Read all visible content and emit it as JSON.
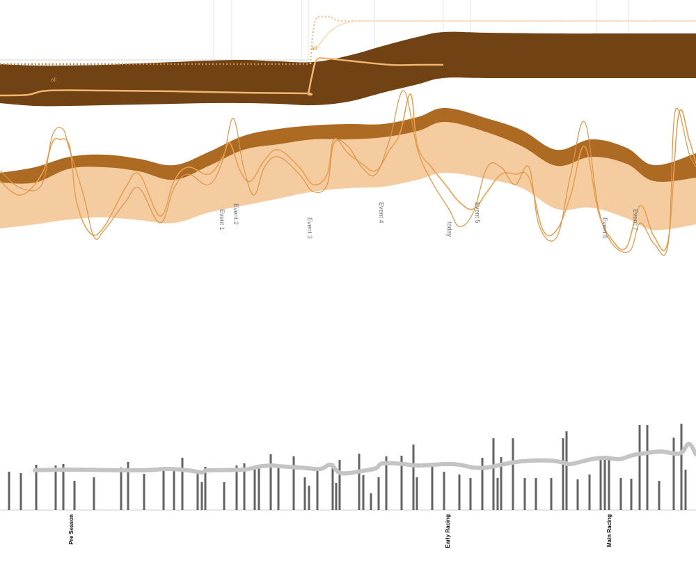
{
  "colors": {
    "performance_band": "#704214",
    "fitness_band_dark": "#ad6a22",
    "fitness_band_light": "#f5cba0",
    "form_line": "#f0b770",
    "load_line_1": "#e8a050",
    "load_line_2": "#d9954a",
    "bars": "#636363",
    "trend": "#c4c4c4",
    "gridline": "#e3e3e3"
  },
  "chart_data": [
    {
      "type": "area",
      "x": [
        0,
        50,
        100,
        150,
        200,
        250,
        300,
        350,
        400,
        450,
        500,
        550,
        600,
        637,
        700,
        800,
        900,
        1000
      ],
      "band_upper": [
        92,
        94,
        94,
        93,
        91,
        89,
        87,
        86,
        88,
        89,
        80,
        66,
        53,
        46,
        47,
        48,
        48,
        48
      ],
      "band_lower": [
        148,
        152,
        152,
        151,
        150,
        149,
        148,
        148,
        149,
        151,
        146,
        133,
        121,
        112,
        112,
        112,
        112,
        112
      ],
      "band_label": "all",
      "form_line": {
        "x": [
          0,
          40,
          70,
          150,
          250,
          350,
          440,
          443,
          448,
          455,
          470,
          500,
          560,
          600,
          637
        ],
        "y": [
          137,
          136,
          130,
          130,
          131,
          133,
          134,
          134,
          110,
          86,
          84,
          87,
          93,
          93,
          93
        ]
      },
      "form_line_label": "all"
    },
    {
      "type": "area",
      "x": [
        0,
        50,
        100,
        150,
        200,
        250,
        300,
        350,
        400,
        450,
        500,
        550,
        600,
        640,
        700,
        750,
        800,
        850,
        900,
        940,
        1000
      ],
      "dark_upper": [
        248,
        240,
        225,
        222,
        228,
        237,
        218,
        195,
        185,
        180,
        178,
        178,
        168,
        155,
        170,
        187,
        215,
        200,
        212,
        237,
        220
      ],
      "light_upper": [
        262,
        262,
        242,
        240,
        246,
        258,
        238,
        215,
        207,
        200,
        200,
        197,
        188,
        175,
        190,
        210,
        238,
        225,
        235,
        260,
        255
      ],
      "light_lower": [
        328,
        322,
        315,
        312,
        316,
        320,
        305,
        295,
        285,
        275,
        270,
        268,
        258,
        248,
        257,
        270,
        300,
        298,
        313,
        330,
        322
      ],
      "series": [
        {
          "x": [
            0,
            30,
            60,
            75,
            85,
            100,
            110,
            130,
            150,
            180,
            200,
            230,
            250,
            270,
            300,
            320,
            330,
            345,
            360,
            380,
            400,
            430,
            450,
            470,
            480,
            500,
            520,
            540,
            560,
            575,
            590,
            600,
            620,
            640,
            660,
            680,
            700,
            720,
            740,
            760,
            780,
            800,
            820,
            840,
            860,
            880,
            900,
            920,
            940,
            960,
            975,
            990,
            1000
          ],
          "y": [
            260,
            280,
            250,
            205,
            200,
            210,
            290,
            335,
            325,
            270,
            250,
            310,
            260,
            240,
            250,
            225,
            205,
            245,
            260,
            230,
            215,
            240,
            265,
            250,
            200,
            220,
            235,
            245,
            215,
            190,
            135,
            210,
            240,
            265,
            290,
            300,
            275,
            250,
            250,
            255,
            330,
            330,
            280,
            210,
            305,
            345,
            355,
            295,
            340,
            345,
            165,
            200,
            235
          ]
        },
        {
          "x": [
            0,
            30,
            60,
            75,
            90,
            100,
            120,
            135,
            150,
            180,
            200,
            230,
            250,
            270,
            300,
            320,
            335,
            350,
            365,
            380,
            400,
            430,
            450,
            470,
            480,
            500,
            520,
            540,
            560,
            580,
            600,
            620,
            645,
            660,
            680,
            700,
            720,
            740,
            760,
            775,
            800,
            820,
            840,
            860,
            880,
            905,
            920,
            940,
            960,
            970,
            990,
            1000
          ],
          "y": [
            245,
            270,
            265,
            195,
            185,
            215,
            280,
            340,
            330,
            290,
            270,
            320,
            270,
            250,
            265,
            230,
            170,
            240,
            280,
            240,
            225,
            250,
            275,
            265,
            205,
            210,
            240,
            250,
            200,
            130,
            215,
            260,
            300,
            325,
            305,
            240,
            240,
            265,
            240,
            325,
            340,
            250,
            175,
            300,
            350,
            360,
            320,
            350,
            350,
            160,
            220,
            240
          ]
        }
      ],
      "event_labels": [
        "Event 1",
        "Event 2",
        "Event 3",
        "Event 4",
        "today",
        "Event 5",
        "Event 6",
        "Event 7"
      ]
    },
    {
      "type": "bar",
      "season_labels": [
        "Pre Season",
        "Early Racing",
        "Main Racing"
      ],
      "bars": [
        {
          "x": 13,
          "v": 55
        },
        {
          "x": 30,
          "v": 53
        },
        {
          "x": 52,
          "v": 65
        },
        {
          "x": 80,
          "v": 64
        },
        {
          "x": 91,
          "v": 66
        },
        {
          "x": 107,
          "v": 42
        },
        {
          "x": 135,
          "v": 47
        },
        {
          "x": 174,
          "v": 61
        },
        {
          "x": 184,
          "v": 69
        },
        {
          "x": 207,
          "v": 52
        },
        {
          "x": 235,
          "v": 56
        },
        {
          "x": 250,
          "v": 58
        },
        {
          "x": 262,
          "v": 75
        },
        {
          "x": 284,
          "v": 53
        },
        {
          "x": 290,
          "v": 40
        },
        {
          "x": 295,
          "v": 62
        },
        {
          "x": 322,
          "v": 40
        },
        {
          "x": 340,
          "v": 64
        },
        {
          "x": 351,
          "v": 67
        },
        {
          "x": 366,
          "v": 63
        },
        {
          "x": 372,
          "v": 61
        },
        {
          "x": 389,
          "v": 80
        },
        {
          "x": 400,
          "v": 60
        },
        {
          "x": 422,
          "v": 77
        },
        {
          "x": 438,
          "v": 47
        },
        {
          "x": 444,
          "v": 35
        },
        {
          "x": 456,
          "v": 58
        },
        {
          "x": 478,
          "v": 67
        },
        {
          "x": 483,
          "v": 39
        },
        {
          "x": 488,
          "v": 72
        },
        {
          "x": 516,
          "v": 81
        },
        {
          "x": 522,
          "v": 50
        },
        {
          "x": 533,
          "v": 24
        },
        {
          "x": 544,
          "v": 47
        },
        {
          "x": 555,
          "v": 77
        },
        {
          "x": 577,
          "v": 78
        },
        {
          "x": 594,
          "v": 94
        },
        {
          "x": 599,
          "v": 47
        },
        {
          "x": 621,
          "v": 66
        },
        {
          "x": 638,
          "v": 55
        },
        {
          "x": 660,
          "v": 51
        },
        {
          "x": 676,
          "v": 46
        },
        {
          "x": 693,
          "v": 75
        },
        {
          "x": 709,
          "v": 103
        },
        {
          "x": 715,
          "v": 46
        },
        {
          "x": 720,
          "v": 76
        },
        {
          "x": 737,
          "v": 103
        },
        {
          "x": 754,
          "v": 46
        },
        {
          "x": 770,
          "v": 46
        },
        {
          "x": 792,
          "v": 46
        },
        {
          "x": 809,
          "v": 103
        },
        {
          "x": 814,
          "v": 113
        },
        {
          "x": 830,
          "v": 44
        },
        {
          "x": 847,
          "v": 51
        },
        {
          "x": 863,
          "v": 77
        },
        {
          "x": 869,
          "v": 73
        },
        {
          "x": 875,
          "v": 77
        },
        {
          "x": 892,
          "v": 46
        },
        {
          "x": 907,
          "v": 45
        },
        {
          "x": 919,
          "v": 122
        },
        {
          "x": 930,
          "v": 122
        },
        {
          "x": 947,
          "v": 42
        },
        {
          "x": 968,
          "v": 104
        },
        {
          "x": 979,
          "v": 124
        },
        {
          "x": 985,
          "v": 58
        }
      ],
      "trend_x": [
        50,
        100,
        200,
        240,
        270,
        290,
        300,
        350,
        370,
        390,
        400,
        430,
        460,
        475,
        490,
        520,
        540,
        550,
        580,
        600,
        640,
        660,
        680,
        700,
        720,
        750,
        790,
        810,
        820,
        850,
        870,
        890,
        910,
        930,
        950,
        970,
        980,
        990,
        1000
      ],
      "trend_v": [
        57,
        58,
        57,
        59,
        57,
        54,
        57,
        58,
        62,
        64,
        63,
        61,
        59,
        65,
        53,
        56,
        60,
        67,
        66,
        64,
        66,
        65,
        61,
        61,
        65,
        70,
        71,
        68,
        66,
        73,
        75,
        73,
        79,
        82,
        84,
        81,
        83,
        95,
        80
      ]
    }
  ]
}
